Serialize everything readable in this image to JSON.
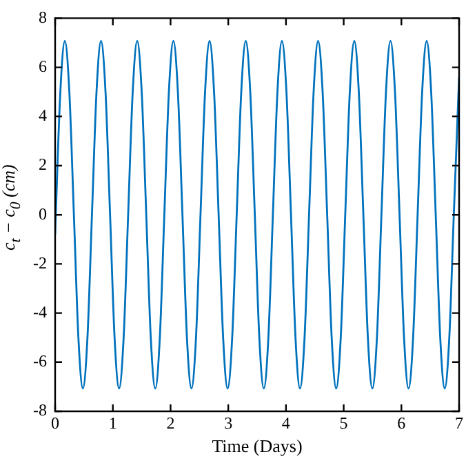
{
  "chart_data": {
    "type": "line",
    "xlabel": "Time (Days)",
    "ylabel": "c$_{t}$ − c$_{0}$ (cm)",
    "xlim": [
      0,
      7
    ],
    "xticks": [
      0,
      1,
      2,
      3,
      4,
      5,
      6,
      7
    ],
    "ylim": [
      -8,
      8
    ],
    "yticks": [
      -8,
      -6,
      -4,
      -2,
      0,
      2,
      4,
      6,
      8
    ],
    "grid": false,
    "legend": false,
    "marker": "none",
    "line_style": "solid",
    "series": [
      {
        "color": "#0072bd",
        "x": [
          0,
          0.011,
          0.09,
          0.168,
          0.246,
          0.325,
          0.403,
          0.481,
          0.56,
          0.638,
          0.717,
          0.795,
          0.873,
          0.952,
          1.03,
          1.108,
          1.187,
          1.265,
          1.344,
          1.422,
          1.5,
          1.579,
          1.657,
          1.735,
          1.814,
          1.892,
          1.971,
          2.049,
          2.127,
          2.206,
          2.284,
          2.362,
          2.441,
          2.519,
          2.598,
          2.676,
          2.754,
          2.833,
          2.911,
          2.989,
          3.068,
          3.146,
          3.225,
          3.303,
          3.381,
          3.46,
          3.538,
          3.616,
          3.695,
          3.773,
          3.852,
          3.93,
          4.008,
          4.087,
          4.165,
          4.243,
          4.322,
          4.4,
          4.479,
          4.557,
          4.635,
          4.714,
          4.792,
          4.87,
          4.949,
          5.027,
          5.106,
          5.184,
          5.262,
          5.341,
          5.419,
          5.497,
          5.576,
          5.654,
          5.733,
          5.811,
          5.889,
          5.968,
          6.046,
          6.124,
          6.203,
          6.281,
          6.36,
          6.438,
          6.516,
          6.595,
          6.673,
          6.751,
          6.83,
          6.908,
          7
        ],
        "values": [
          -0.8,
          0,
          5,
          7.07,
          5,
          0,
          -5,
          -7.07,
          -5,
          0,
          5,
          7.07,
          5,
          0,
          -5,
          -7.07,
          -5,
          0,
          5,
          7.07,
          5,
          0,
          -5,
          -7.07,
          -5,
          0,
          5,
          7.07,
          5,
          0,
          -5,
          -7.07,
          -5,
          0,
          5,
          7.07,
          5,
          0,
          -5,
          -7.07,
          -5,
          0,
          5,
          7.07,
          5,
          0,
          -5,
          -7.07,
          -5,
          0,
          5,
          7.07,
          5,
          0,
          -5,
          -7.07,
          -5,
          0,
          5,
          7.07,
          5,
          0,
          -5,
          -7.07,
          -5,
          0,
          5,
          7.07,
          5,
          0,
          -5,
          -7.07,
          -5,
          0,
          5,
          7.07,
          5,
          0,
          -5,
          -7.07,
          -5,
          0,
          5,
          7.07,
          5,
          0,
          -5,
          -7.07,
          -5,
          0,
          5.6
        ]
      }
    ]
  }
}
